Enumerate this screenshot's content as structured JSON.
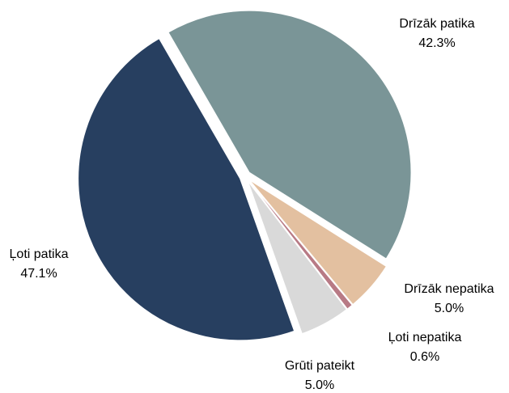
{
  "chart_data": {
    "type": "pie",
    "categories": [
      "Drīzāk patika",
      "Drīzāk nepatika",
      "Ļoti nepatika",
      "Grūti pateikt",
      "Ļoti patika"
    ],
    "values": [
      42.3,
      5.0,
      0.6,
      5.0,
      47.1
    ],
    "value_labels": [
      "42.3%",
      "5.0%",
      "0.6%",
      "5.0%",
      "47.1%"
    ],
    "colors": [
      "#7a9597",
      "#e3c0a0",
      "#b87a85",
      "#d9d9d9",
      "#273f60"
    ]
  }
}
